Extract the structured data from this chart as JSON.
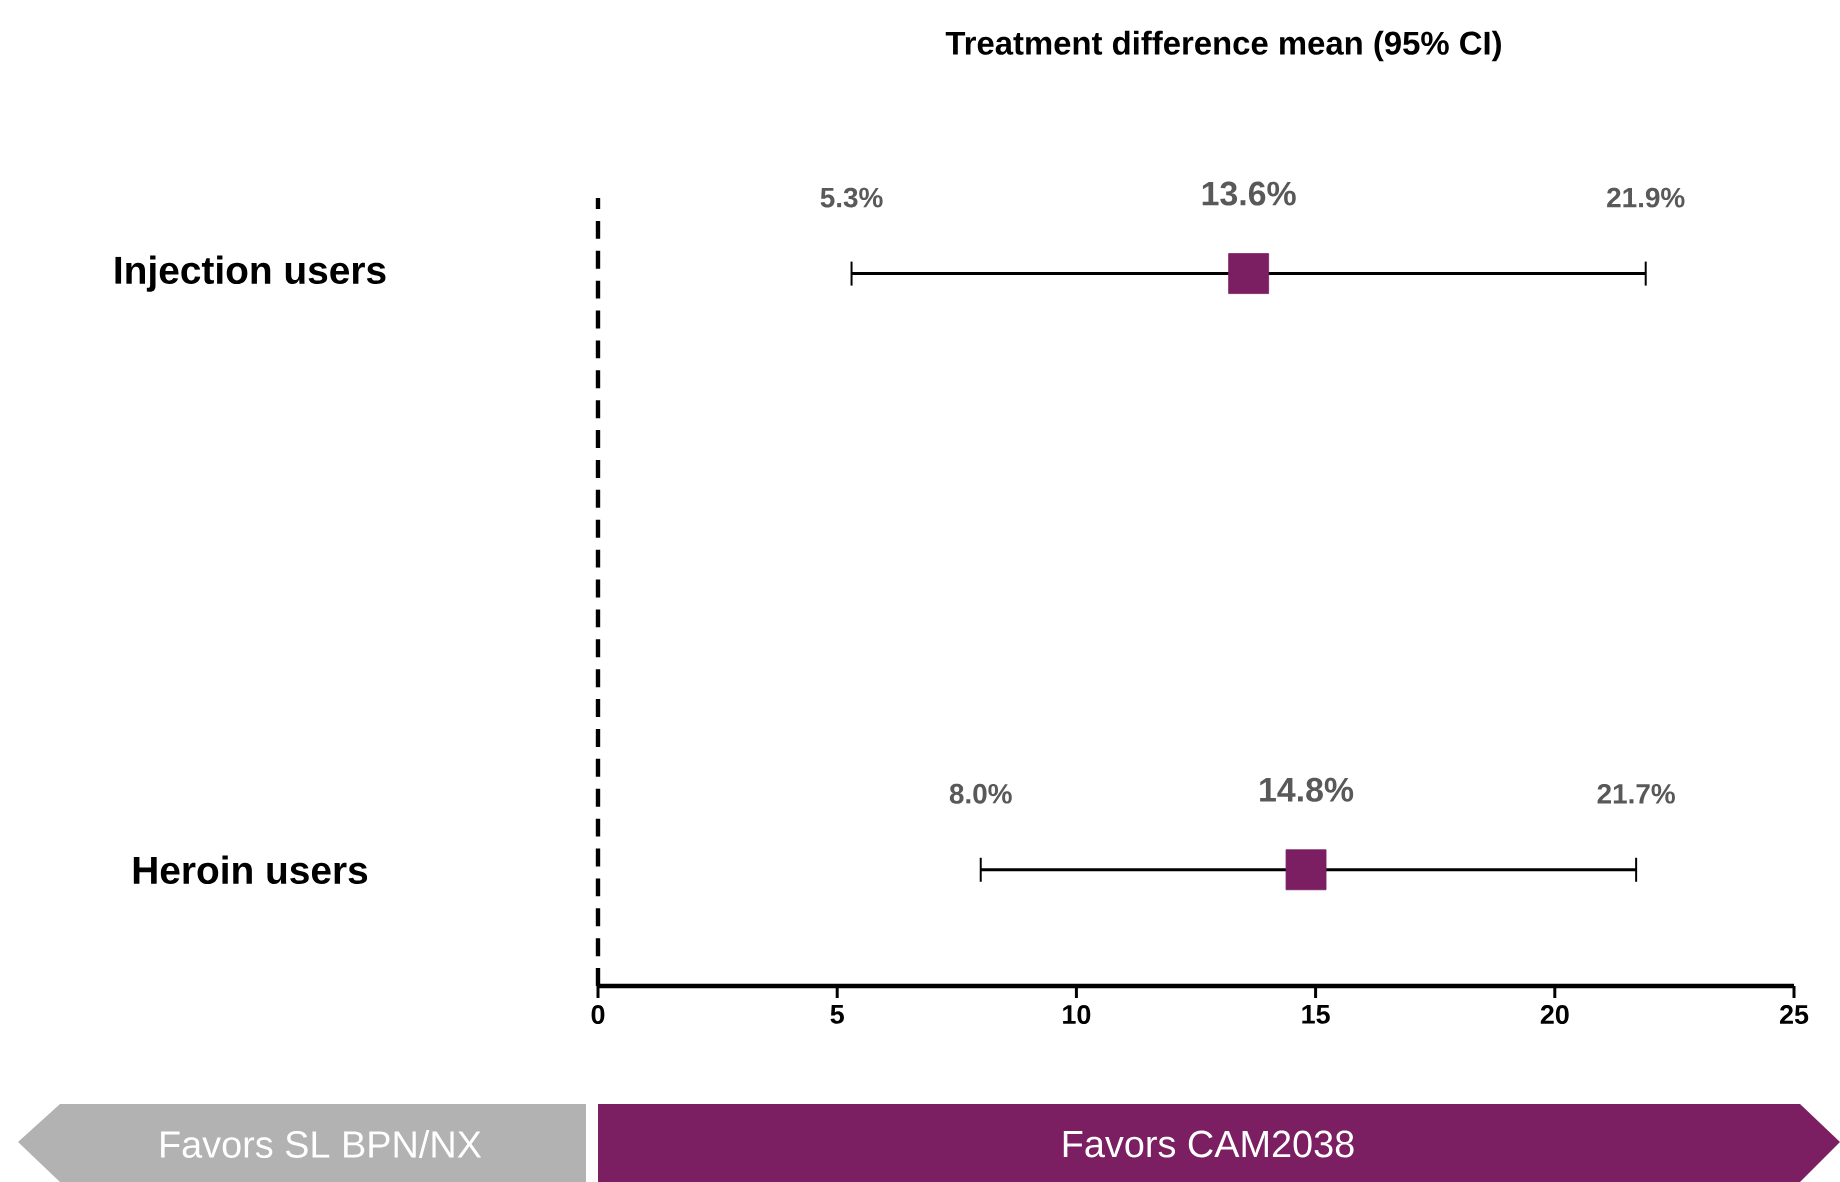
{
  "chart_data": {
    "type": "scatter",
    "orientation": "horizontal",
    "title": "Treatment difference mean (95% CI)",
    "categories": [
      "Injection users",
      "Heroin users"
    ],
    "series": [
      {
        "color": "#7b1f62",
        "values": [
          13.6,
          14.8
        ],
        "errors": [
          [
            5.3,
            21.9
          ],
          [
            8.0,
            21.7
          ]
        ],
        "value_labels": [
          "13.6%",
          "14.8%"
        ]
      }
    ],
    "marker": "square",
    "xlim": [
      0,
      25
    ],
    "xticks": [
      0,
      5,
      10,
      15,
      20,
      25
    ],
    "ref_lines": [
      {
        "axis": "x",
        "value": 0,
        "line_style": "dashed",
        "color": "#000000"
      }
    ],
    "annotations": [
      "5.3%",
      "21.9%",
      "8.0%",
      "21.7%",
      "Favors SL BPN/NX",
      "Favors CAM2038"
    ]
  }
}
